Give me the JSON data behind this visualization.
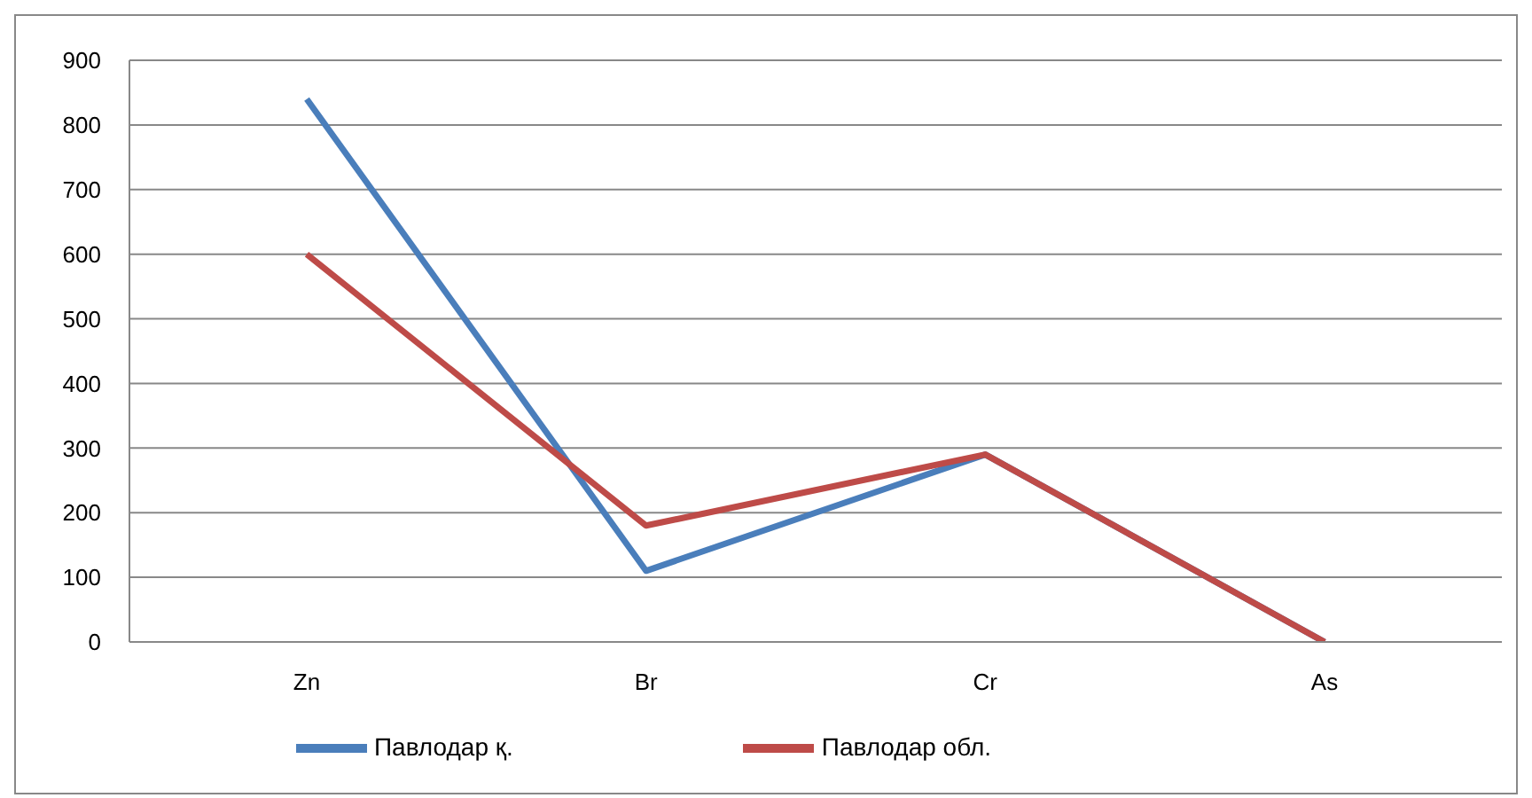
{
  "chart_data": {
    "type": "line",
    "categories": [
      "Zn",
      "Br",
      "Cr",
      "As"
    ],
    "series": [
      {
        "name": "Павлодар қ.",
        "color": "#4a7ebb",
        "values": [
          840,
          110,
          290,
          0
        ]
      },
      {
        "name": "Павлодар обл.",
        "color": "#be4b48",
        "values": [
          600,
          180,
          290,
          0
        ]
      }
    ],
    "ylim": [
      0,
      900
    ],
    "yticks": [
      0,
      100,
      200,
      300,
      400,
      500,
      600,
      700,
      800,
      900
    ],
    "grid": "y",
    "legend": "bottom",
    "marker": "none",
    "line_style": "solid"
  }
}
